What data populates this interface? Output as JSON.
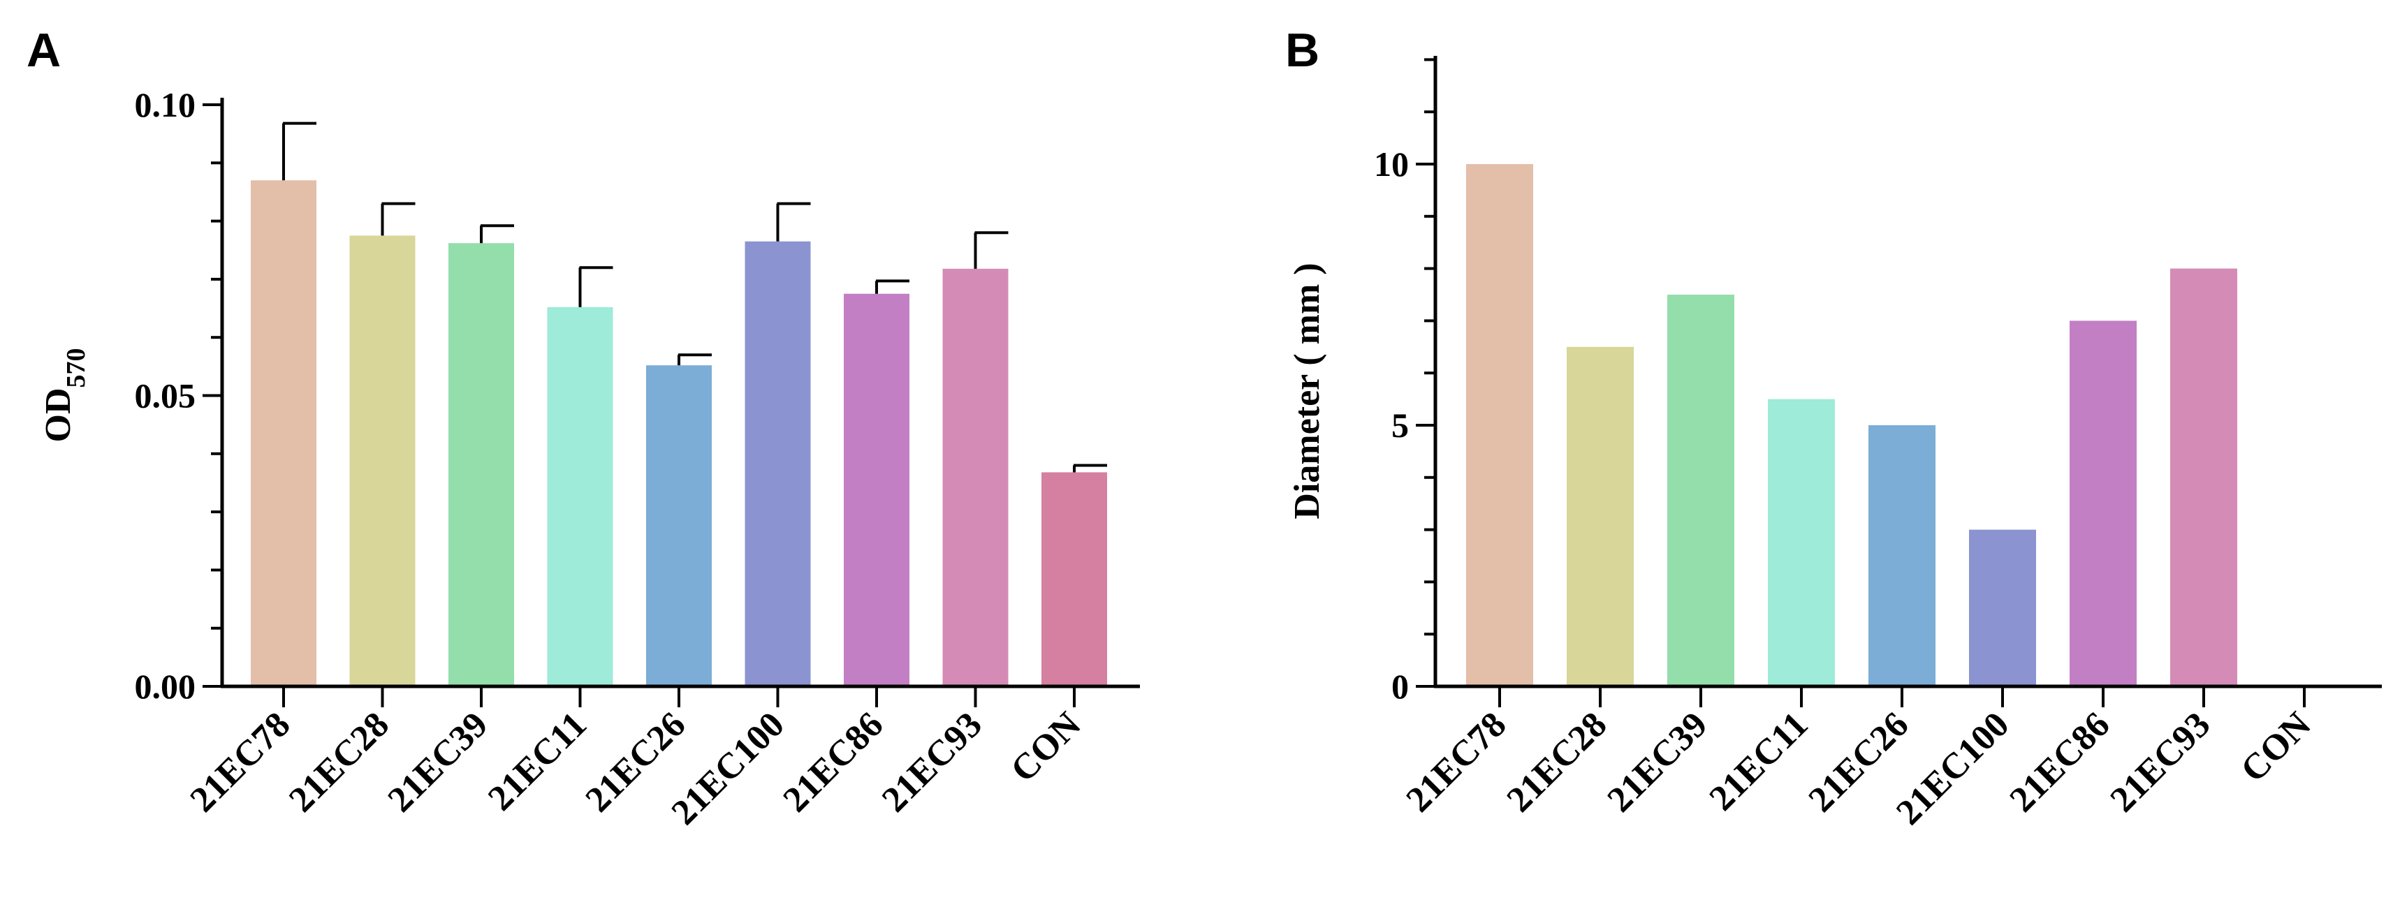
{
  "chart_data": [
    {
      "panel": "A",
      "type": "bar",
      "ylabel": "OD",
      "ylabel_sub": "570",
      "categories": [
        "21EC78",
        "21EC28",
        "21EC39",
        "21EC11",
        "21EC26",
        "21EC100",
        "21EC86",
        "21EC93",
        "CON"
      ],
      "values": [
        0.087,
        0.0775,
        0.0762,
        0.0652,
        0.0552,
        0.0765,
        0.0675,
        0.0718,
        0.0368
      ],
      "errors": [
        0.0098,
        0.0055,
        0.003,
        0.0068,
        0.0018,
        0.0065,
        0.0022,
        0.0062,
        0.0012
      ],
      "colors": [
        "#e3bea8",
        "#d8d698",
        "#93deab",
        "#9debd8",
        "#7badd6",
        "#8b94d0",
        "#c27fc4",
        "#d48cb7",
        "#d57fa1"
      ],
      "ylim": [
        0,
        0.1
      ],
      "yticks": [
        "0.00",
        "0.05",
        "0.10"
      ],
      "ytick_values": [
        0,
        0.05,
        0.1
      ]
    },
    {
      "panel": "B",
      "type": "bar",
      "ylabel": "Diameter ( mm )",
      "categories": [
        "21EC78",
        "21EC28",
        "21EC39",
        "21EC11",
        "21EC26",
        "21EC100",
        "21EC86",
        "21EC93",
        "CON"
      ],
      "values": [
        10,
        6.5,
        7.5,
        5.5,
        5,
        3,
        7,
        8,
        0
      ],
      "colors": [
        "#e3bea8",
        "#d8d698",
        "#93deab",
        "#9debd8",
        "#7badd6",
        "#8b94d0",
        "#c27fc4",
        "#d48cb7",
        "#d57fa1"
      ],
      "ylim": [
        0,
        12
      ],
      "yticks": [
        "0",
        "5",
        "10"
      ],
      "ytick_values": [
        0,
        5,
        10
      ]
    }
  ]
}
